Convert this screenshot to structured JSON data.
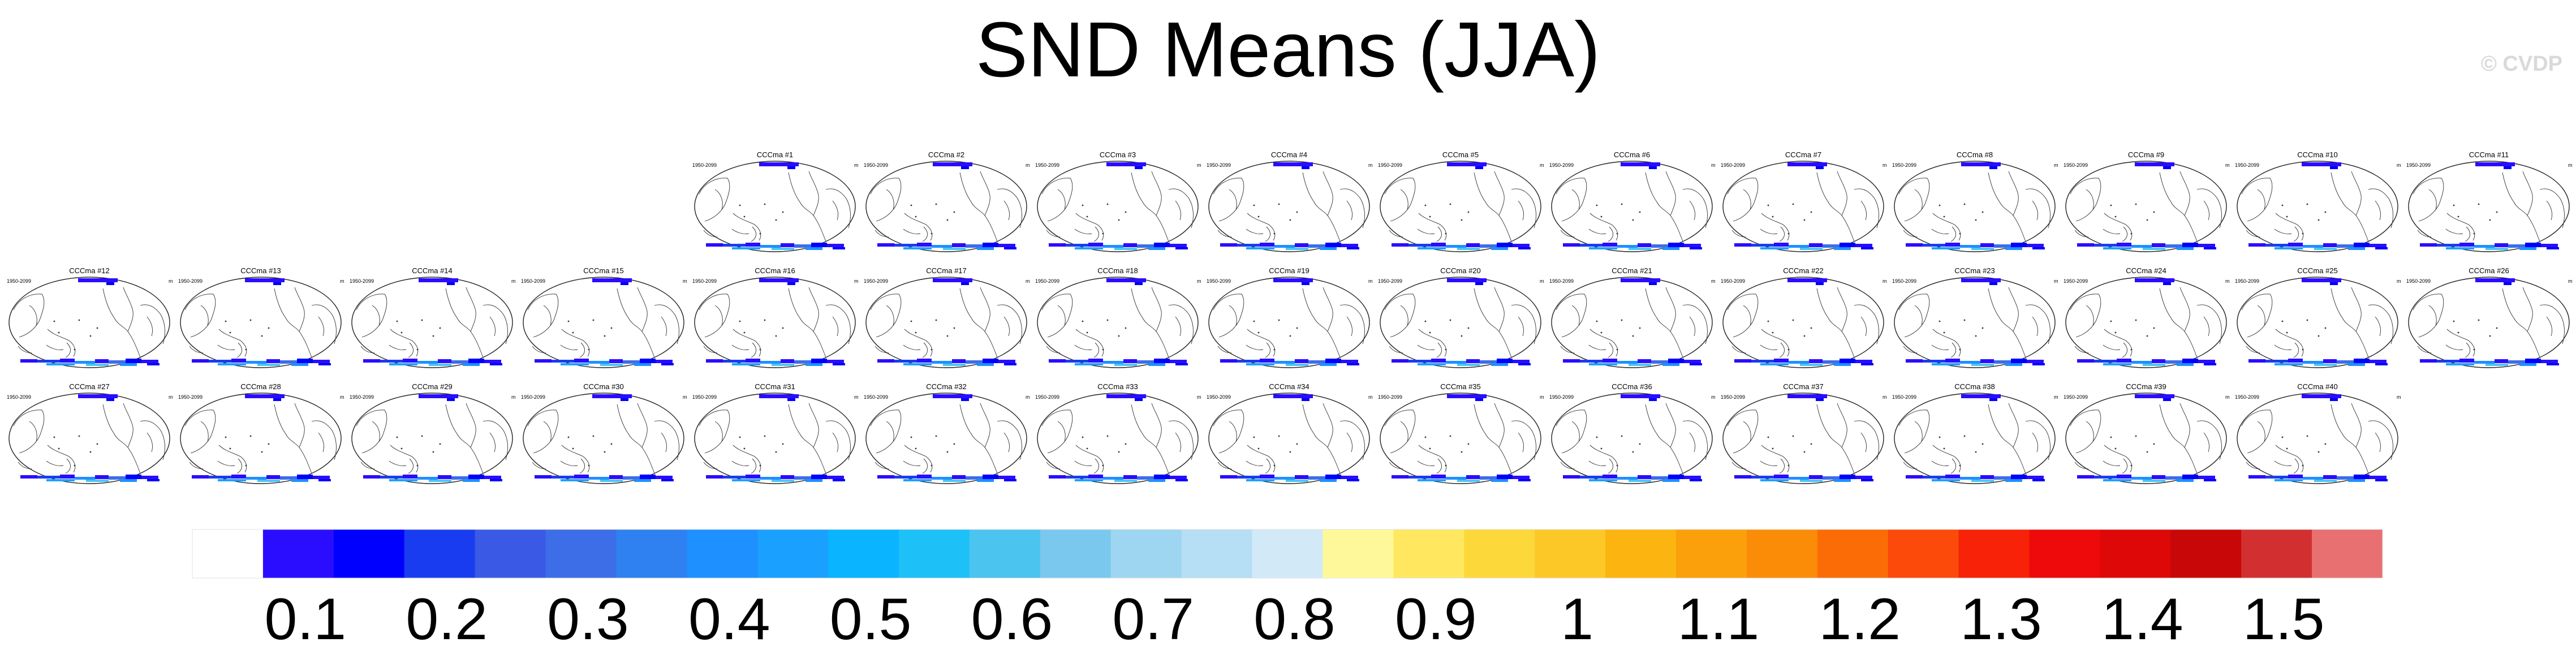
{
  "title": "SND Means (JJA)",
  "watermark": "© CVDP",
  "chart_data": {
    "type": "heatmap",
    "title": "SND Means (JJA)",
    "variable": "SND",
    "season": "JJA",
    "panel_left_label": "1950-2099",
    "panel_right_label": "m",
    "panels": [
      {
        "title": "CCCma #1"
      },
      {
        "title": "CCCma #2"
      },
      {
        "title": "CCCma #3"
      },
      {
        "title": "CCCma #4"
      },
      {
        "title": "CCCma #5"
      },
      {
        "title": "CCCma #6"
      },
      {
        "title": "CCCma #7"
      },
      {
        "title": "CCCma #8"
      },
      {
        "title": "CCCma #9"
      },
      {
        "title": "CCCma #10"
      },
      {
        "title": "CCCma #11"
      },
      {
        "title": "CCCma #12"
      },
      {
        "title": "CCCma #13"
      },
      {
        "title": "CCCma #14"
      },
      {
        "title": "CCCma #15"
      },
      {
        "title": "CCCma #16"
      },
      {
        "title": "CCCma #17"
      },
      {
        "title": "CCCma #18"
      },
      {
        "title": "CCCma #19"
      },
      {
        "title": "CCCma #20"
      },
      {
        "title": "CCCma #21"
      },
      {
        "title": "CCCma #22"
      },
      {
        "title": "CCCma #23"
      },
      {
        "title": "CCCma #24"
      },
      {
        "title": "CCCma #25"
      },
      {
        "title": "CCCma #26"
      },
      {
        "title": "CCCma #27"
      },
      {
        "title": "CCCma #28"
      },
      {
        "title": "CCCma #29"
      },
      {
        "title": "CCCma #30"
      },
      {
        "title": "CCCma #31"
      },
      {
        "title": "CCCma #32"
      },
      {
        "title": "CCCma #33"
      },
      {
        "title": "CCCma #34"
      },
      {
        "title": "CCCma #35"
      },
      {
        "title": "CCCma #36"
      },
      {
        "title": "CCCma #37"
      },
      {
        "title": "CCCma #38"
      },
      {
        "title": "CCCma #39"
      },
      {
        "title": "CCCma #40"
      }
    ],
    "colorbar": {
      "tick_labels": [
        "0.1",
        "0.2",
        "0.3",
        "0.4",
        "0.5",
        "0.6",
        "0.7",
        "0.8",
        "0.9",
        "1",
        "1.1",
        "1.2",
        "1.3",
        "1.4",
        "1.5"
      ],
      "colors": [
        "#ffffff",
        "#2a0dff",
        "#0000ff",
        "#1a3cf0",
        "#3a5ae6",
        "#3d6ee8",
        "#2f80f0",
        "#1e90ff",
        "#1aa0ff",
        "#0ab4ff",
        "#1ec0f8",
        "#4cc4f0",
        "#7ac8ee",
        "#9ed6f2",
        "#b6def4",
        "#d2eaf8",
        "#fff89a",
        "#ffe860",
        "#fcd83a",
        "#fcc828",
        "#fbb410",
        "#fba00a",
        "#fb8c08",
        "#fb6c06",
        "#fb4a0a",
        "#f82208",
        "#ee0a0a",
        "#de0808",
        "#c80808",
        "#d23030",
        "#e87070"
      ],
      "units": "m"
    }
  }
}
